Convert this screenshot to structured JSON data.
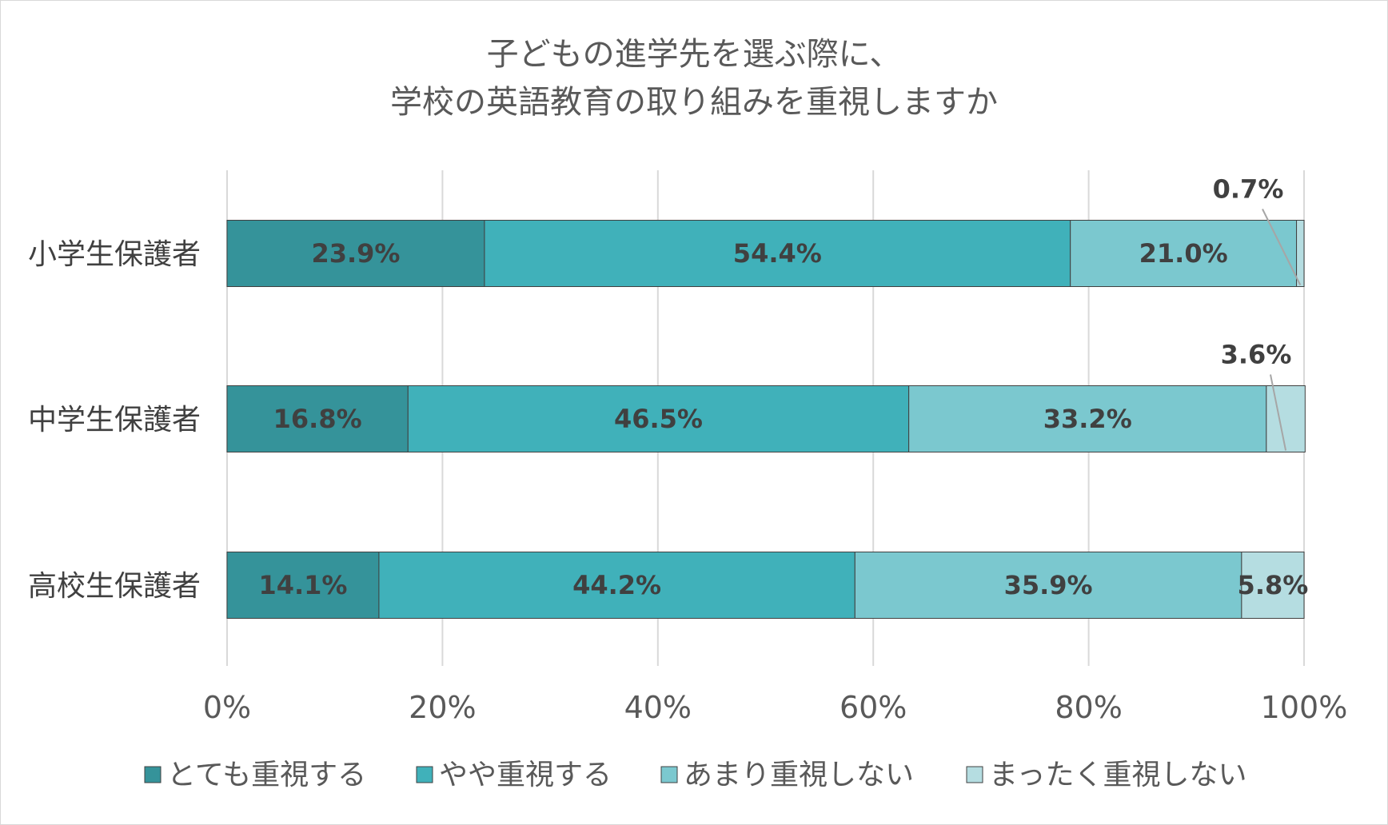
{
  "chart_data": {
    "type": "bar",
    "orientation": "horizontal",
    "stacked": true,
    "title_lines": [
      "子どもの進学先を選ぶ際に、",
      "学校の英語教育の取り組みを重視しますか"
    ],
    "categories": [
      "小学生保護者",
      "中学生保護者",
      "高校生保護者"
    ],
    "series": [
      {
        "name": "とても重視する",
        "color": "#35939a",
        "values": [
          23.9,
          16.8,
          14.1
        ],
        "labels": [
          "23.9%",
          "16.8%",
          "14.1%"
        ]
      },
      {
        "name": "やや重視する",
        "color": "#40b1ba",
        "values": [
          54.4,
          46.5,
          44.2
        ],
        "labels": [
          "54.4%",
          "46.5%",
          "44.2%"
        ]
      },
      {
        "name": "あまり重視しない",
        "color": "#7bc8cf",
        "values": [
          21.0,
          33.2,
          35.9
        ],
        "labels": [
          "21.0%",
          "33.2%",
          "35.9%"
        ]
      },
      {
        "name": "まったく重視しない",
        "color": "#b5dde1",
        "values": [
          0.7,
          3.6,
          5.8
        ],
        "labels": [
          "0.7%",
          "3.6%",
          "5.8%"
        ]
      }
    ],
    "xlim": [
      0,
      100
    ],
    "x_ticks": [
      "0%",
      "20%",
      "40%",
      "60%",
      "80%",
      "100%"
    ],
    "grid": true,
    "legend_position": "bottom"
  }
}
